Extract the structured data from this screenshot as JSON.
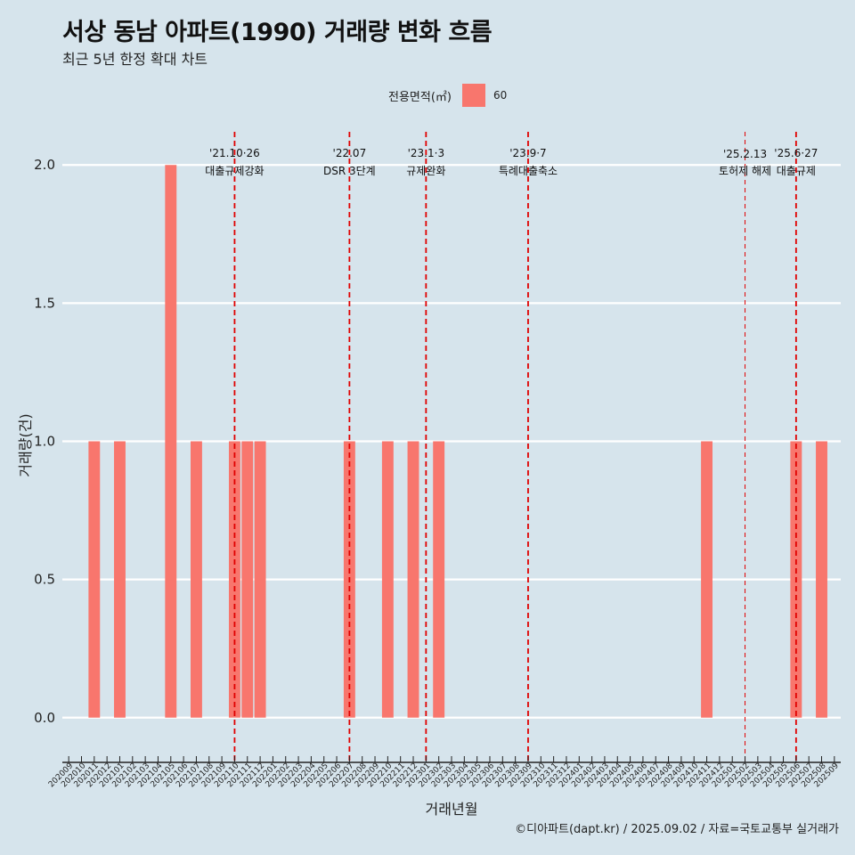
{
  "title": "서상 동남 아파트(1990) 거래량 변화 흐름",
  "subtitle": "최근 5년 한정 확대 차트",
  "caption": "©디아파트(dapt.kr) / 2025.09.02 / 자료=국토교통부 실거래가",
  "colors": {
    "background": "#d6e4ec",
    "bar": "#f8766d",
    "event_line": "#e00000",
    "grid": "#ffffff"
  },
  "chart_data": {
    "type": "bar",
    "xlabel": "거래년월",
    "ylabel": "거래량(건)",
    "ylim": [
      -0.12,
      2.12
    ],
    "yticks": [
      0.0,
      0.5,
      1.0,
      1.5,
      2.0
    ],
    "ytick_labels": [
      "0.0",
      "0.5",
      "1.0",
      "1.5",
      "2.0"
    ],
    "legend": {
      "title": "전용면적(㎡)",
      "entries": [
        "60"
      ],
      "placement": "top-center"
    },
    "categories": [
      "202009",
      "202010",
      "202011",
      "202012",
      "202101",
      "202102",
      "202103",
      "202104",
      "202105",
      "202106",
      "202107",
      "202108",
      "202109",
      "202110",
      "202111",
      "202112",
      "202201",
      "202202",
      "202203",
      "202204",
      "202205",
      "202206",
      "202207",
      "202208",
      "202209",
      "202210",
      "202211",
      "202212",
      "202301",
      "202302",
      "202303",
      "202304",
      "202305",
      "202306",
      "202307",
      "202308",
      "202309",
      "202310",
      "202311",
      "202312",
      "202401",
      "202402",
      "202403",
      "202404",
      "202405",
      "202406",
      "202407",
      "202408",
      "202409",
      "202410",
      "202411",
      "202412",
      "202501",
      "202502",
      "202503",
      "202504",
      "202505",
      "202506",
      "202507",
      "202508",
      "202509"
    ],
    "series": [
      {
        "name": "60",
        "values": [
          0,
          0,
          1,
          0,
          1,
          0,
          0,
          0,
          2,
          0,
          1,
          0,
          0,
          1,
          1,
          1,
          0,
          0,
          0,
          0,
          0,
          0,
          1,
          0,
          0,
          1,
          0,
          1,
          0,
          1,
          0,
          0,
          0,
          0,
          0,
          0,
          0,
          0,
          0,
          0,
          0,
          0,
          0,
          0,
          0,
          0,
          0,
          0,
          0,
          0,
          1,
          0,
          0,
          0,
          0,
          0,
          0,
          1,
          0,
          1,
          0
        ]
      }
    ],
    "events": [
      {
        "category": "202110",
        "label_top": "'21.10·26",
        "label_bottom": "대출규제강화",
        "style": "bold"
      },
      {
        "category": "202207",
        "label_top": "'22.07",
        "label_bottom": "DSR 3단계",
        "style": "bold"
      },
      {
        "category": "202301",
        "label_top": "'23.1·3",
        "label_bottom": "규제완화",
        "style": "bold"
      },
      {
        "category": "202309",
        "label_top": "'23.9·7",
        "label_bottom": "특례대출축소",
        "style": "bold"
      },
      {
        "category": "202502",
        "label_top": "'25.2.13",
        "label_bottom": "토허제 해제",
        "style": "thin"
      },
      {
        "category": "202506",
        "label_top": "'25.6·27",
        "label_bottom": "대출규제",
        "style": "bold"
      }
    ]
  }
}
